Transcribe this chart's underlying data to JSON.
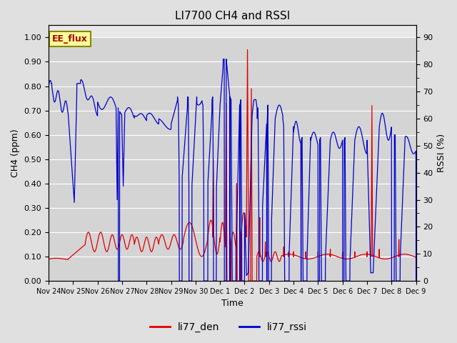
{
  "title": "LI7700 CH4 and RSSI",
  "xlabel": "Time",
  "ylabel_left": "CH4 (ppm)",
  "ylabel_right": "RSSI (%)",
  "ylim_left": [
    0.0,
    1.0
  ],
  "ylim_right": [
    0,
    90
  ],
  "yticks_left": [
    0.0,
    0.1,
    0.2,
    0.3,
    0.4,
    0.5,
    0.6,
    0.7,
    0.8,
    0.9,
    1.0
  ],
  "yticks_right_major": [
    0,
    10,
    20,
    30,
    40,
    50,
    60,
    70,
    80,
    90
  ],
  "yticks_right_minor_labels": [
    "-",
    "-",
    "-",
    "-",
    "-",
    "-",
    "-",
    "-",
    "-"
  ],
  "color_ch4": "#dd0000",
  "color_rssi": "#0000cc",
  "legend_label_ch4": "li77_den",
  "legend_label_rssi": "li77_rssi",
  "fig_facecolor": "#e0e0e0",
  "plot_facecolor": "#d4d4d4",
  "upper_facecolor": "#e8e8e8",
  "annotation_text": "EE_flux",
  "annotation_bg": "#ffff99",
  "annotation_border": "#888800",
  "title_fontsize": 11,
  "axis_fontsize": 9,
  "tick_fontsize": 8
}
